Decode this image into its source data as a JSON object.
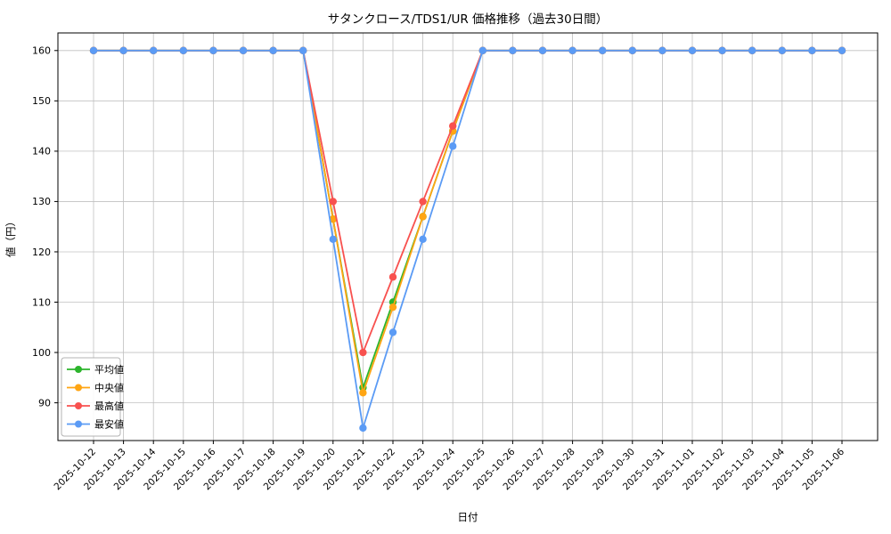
{
  "chart_data": {
    "type": "line",
    "title": "サタンクロース/TDS1/UR 価格推移（過去30日間）",
    "xlabel": "日付",
    "ylabel": "値（円）",
    "x": [
      "2025-10-12",
      "2025-10-13",
      "2025-10-14",
      "2025-10-15",
      "2025-10-16",
      "2025-10-17",
      "2025-10-18",
      "2025-10-19",
      "2025-10-20",
      "2025-10-21",
      "2025-10-22",
      "2025-10-23",
      "2025-10-24",
      "2025-10-25",
      "2025-10-26",
      "2025-10-27",
      "2025-10-28",
      "2025-10-29",
      "2025-10-30",
      "2025-10-31",
      "2025-11-01",
      "2025-11-02",
      "2025-11-03",
      "2025-11-04",
      "2025-11-05",
      "2025-11-06"
    ],
    "yticks": [
      90,
      100,
      110,
      120,
      130,
      140,
      150,
      160
    ],
    "ylim": [
      82.5,
      163.5
    ],
    "grid": true,
    "legend_position": "lower-left",
    "series": [
      {
        "name": "平均値",
        "color": "#2cb42c",
        "values": [
          160,
          160,
          160,
          160,
          160,
          160,
          160,
          160,
          126.5,
          93,
          110,
          127,
          144,
          160,
          160,
          160,
          160,
          160,
          160,
          160,
          160,
          160,
          160,
          160,
          160,
          160
        ]
      },
      {
        "name": "中央値",
        "color": "#ffa513",
        "values": [
          160,
          160,
          160,
          160,
          160,
          160,
          160,
          160,
          126.5,
          92,
          109,
          127,
          144,
          160,
          160,
          160,
          160,
          160,
          160,
          160,
          160,
          160,
          160,
          160,
          160,
          160
        ]
      },
      {
        "name": "最高値",
        "color": "#f8514f",
        "values": [
          160,
          160,
          160,
          160,
          160,
          160,
          160,
          160,
          130,
          100,
          115,
          130,
          145,
          160,
          160,
          160,
          160,
          160,
          160,
          160,
          160,
          160,
          160,
          160,
          160,
          160
        ]
      },
      {
        "name": "最安値",
        "color": "#5b9bf5",
        "values": [
          160,
          160,
          160,
          160,
          160,
          160,
          160,
          160,
          122.5,
          85,
          104,
          122.5,
          141,
          160,
          160,
          160,
          160,
          160,
          160,
          160,
          160,
          160,
          160,
          160,
          160,
          160
        ]
      }
    ],
    "colors": {
      "grid": "#c0c0c0",
      "spine": "#000000",
      "legend_border": "#b3b3b3",
      "background": "#ffffff"
    }
  }
}
